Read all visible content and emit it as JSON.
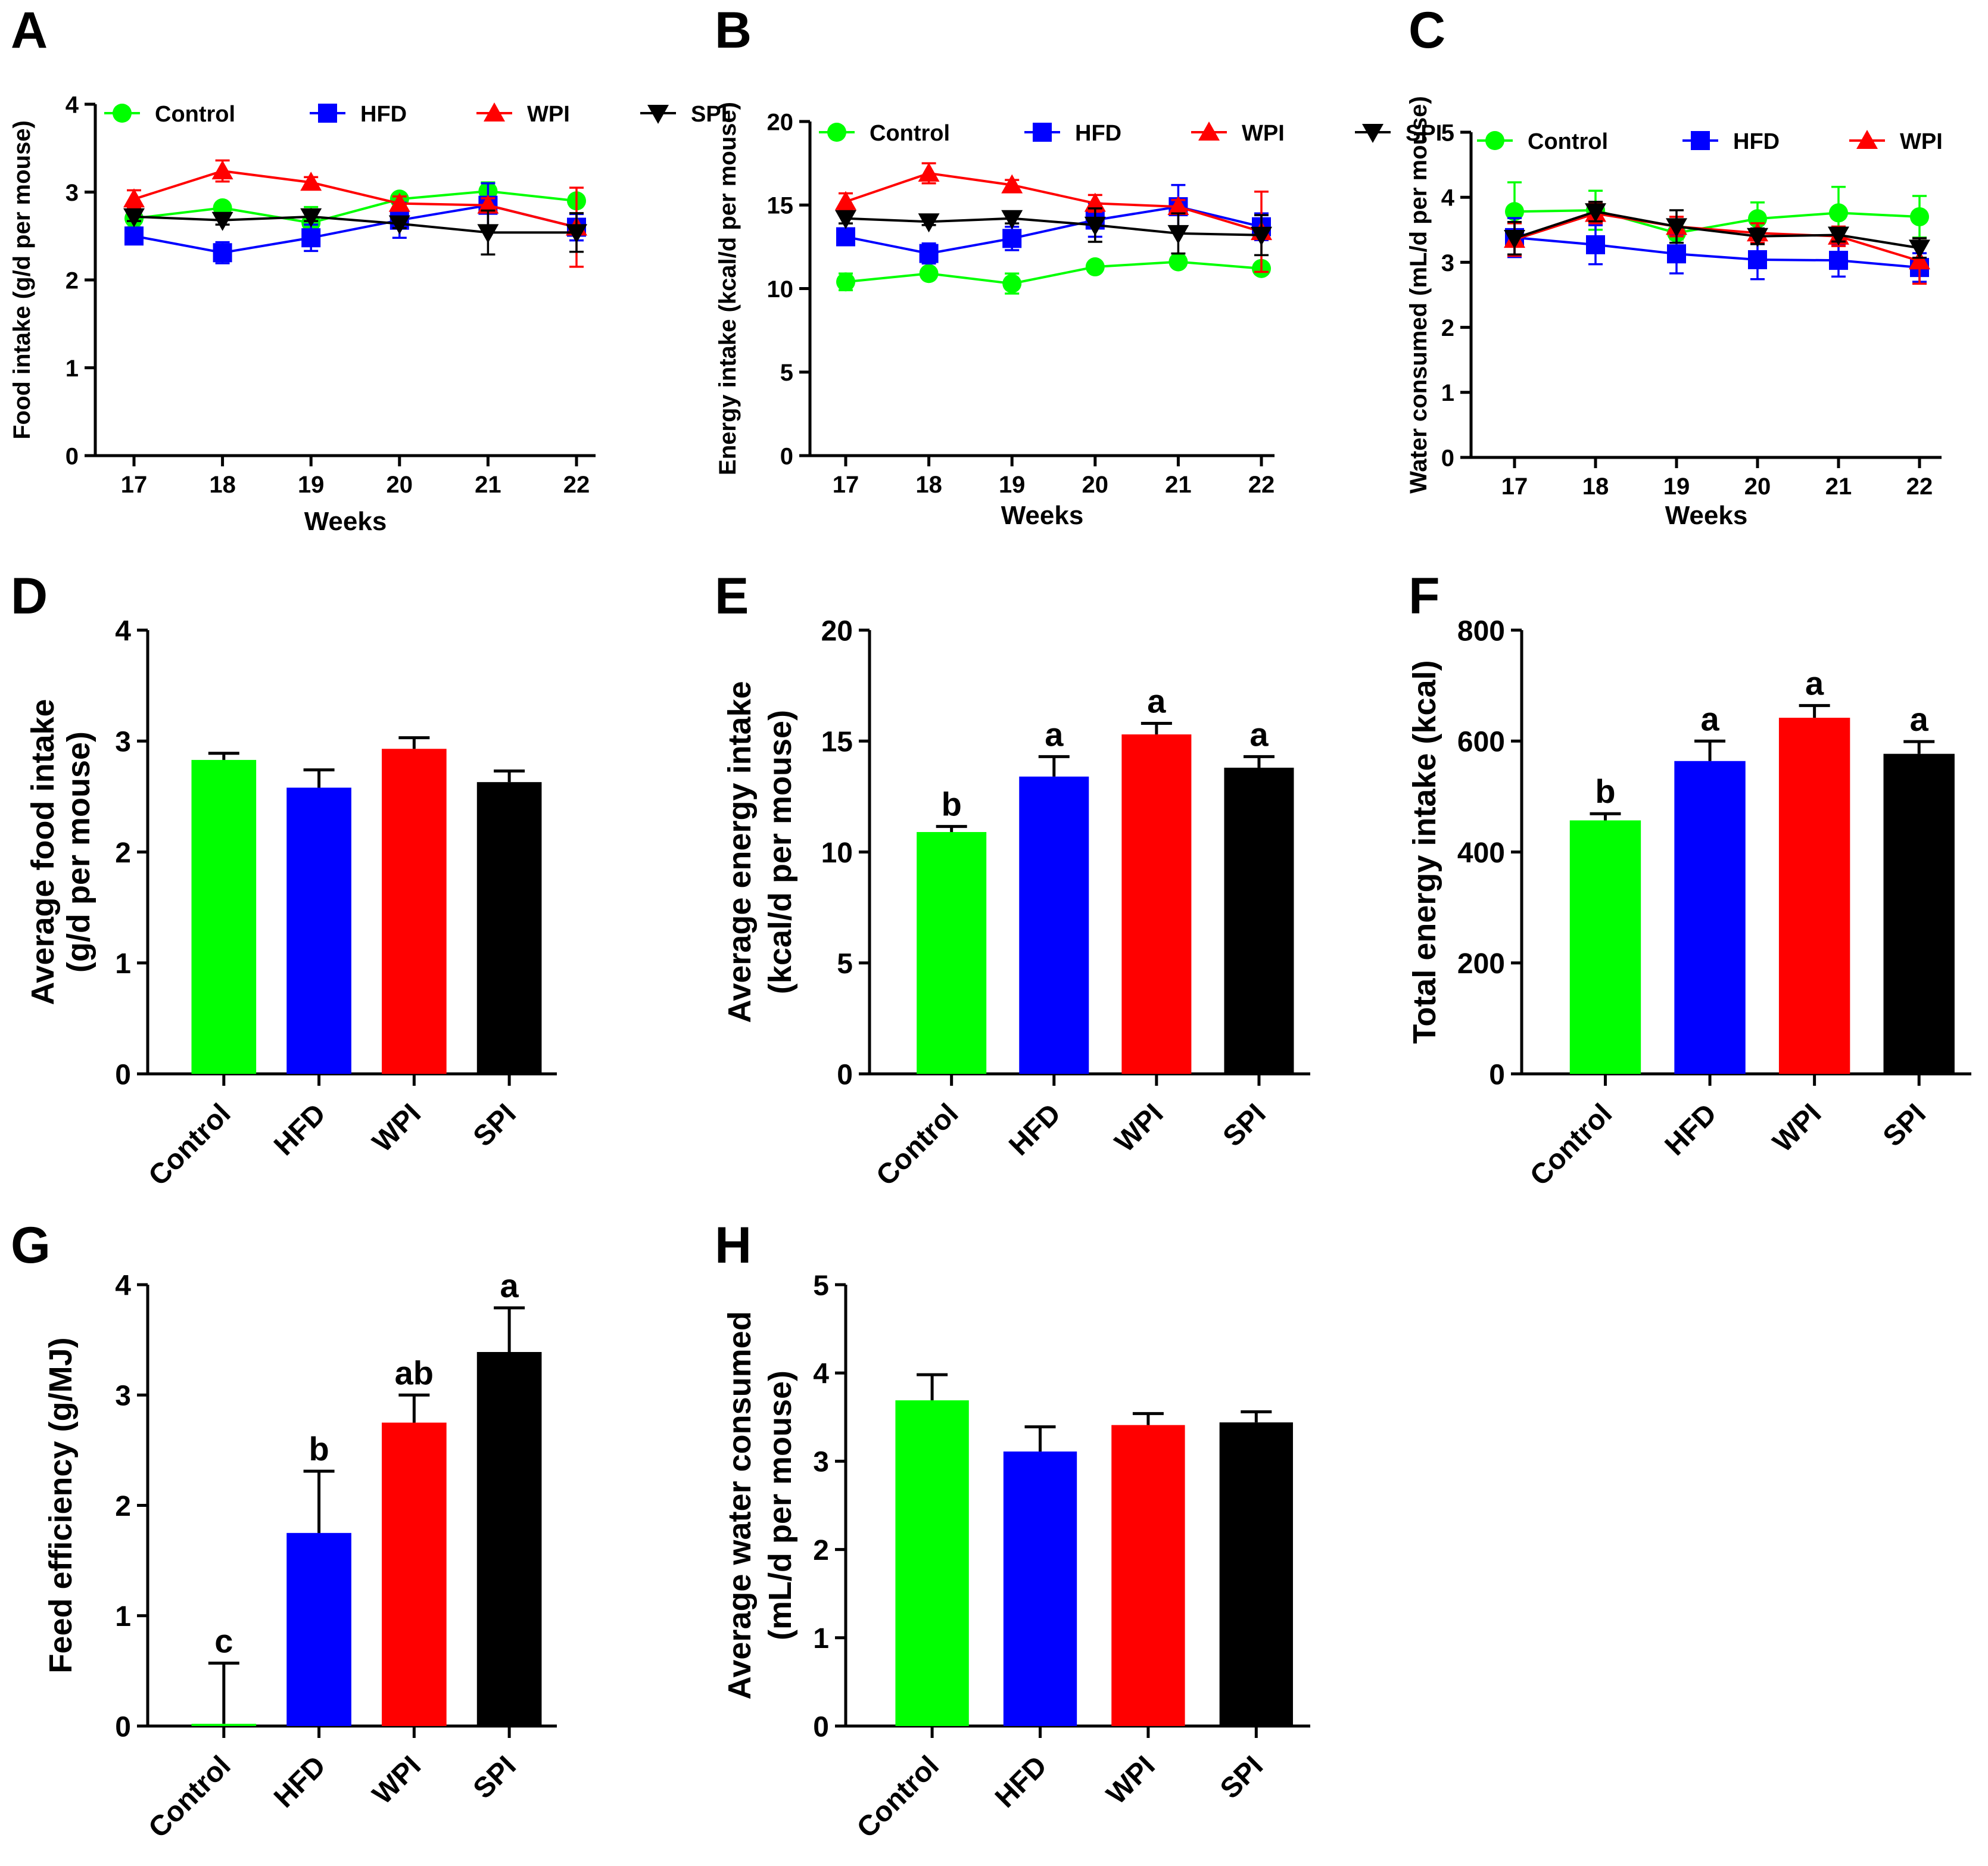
{
  "colors": {
    "Control": "#00ff00",
    "HFD": "#0000ff",
    "WPI": "#ff0000",
    "SPI": "#000000"
  },
  "legend_labels": [
    "Control",
    "HFD",
    "WPI",
    "SPI"
  ],
  "chart_data": [
    {
      "id": "A",
      "type": "line",
      "letter": "A",
      "ylabel": "Food intake (g/d per mouse)",
      "xlabel": "Weeks",
      "x": [
        17,
        18,
        19,
        20,
        21,
        22
      ],
      "xticks": [
        "17",
        "18",
        "19",
        "20",
        "21",
        "22"
      ],
      "ylim": [
        0,
        4
      ],
      "yticks": [
        0,
        1,
        2,
        3,
        4
      ],
      "series": [
        {
          "name": "Control",
          "marker": "circle",
          "values": [
            2.7,
            2.82,
            2.65,
            2.92,
            3.01,
            2.9
          ],
          "errors": [
            0.1,
            0.06,
            0.18,
            0.05,
            0.1,
            0.05
          ]
        },
        {
          "name": "HFD",
          "marker": "square",
          "values": [
            2.5,
            2.31,
            2.48,
            2.68,
            2.85,
            2.6
          ],
          "errors": [
            0.08,
            0.12,
            0.15,
            0.2,
            0.25,
            0.15
          ]
        },
        {
          "name": "WPI",
          "marker": "triangle",
          "values": [
            2.92,
            3.24,
            3.11,
            2.87,
            2.85,
            2.6
          ],
          "errors": [
            0.1,
            0.12,
            0.06,
            0.08,
            0.08,
            0.45
          ]
        },
        {
          "name": "SPI",
          "marker": "triangle-down",
          "values": [
            2.72,
            2.68,
            2.72,
            2.64,
            2.54,
            2.54
          ],
          "errors": [
            0.05,
            0.05,
            0.05,
            0.05,
            0.25,
            0.22
          ]
        }
      ]
    },
    {
      "id": "B",
      "type": "line",
      "letter": "B",
      "ylabel": "Energy intake (kcal/d per mouse)",
      "xlabel": "Weeks",
      "x": [
        17,
        18,
        19,
        20,
        21,
        22
      ],
      "xticks": [
        "17",
        "18",
        "19",
        "20",
        "21",
        "22"
      ],
      "ylim": [
        0,
        20
      ],
      "yticks": [
        0,
        5,
        10,
        15,
        20
      ],
      "series": [
        {
          "name": "Control",
          "marker": "circle",
          "values": [
            10.4,
            10.9,
            10.3,
            11.3,
            11.6,
            11.2
          ],
          "errors": [
            0.5,
            0.3,
            0.6,
            0.2,
            0.3,
            0.2
          ]
        },
        {
          "name": "HFD",
          "marker": "square",
          "values": [
            13.1,
            12.1,
            13.0,
            14.1,
            14.9,
            13.7
          ],
          "errors": [
            0.5,
            0.6,
            0.7,
            1.0,
            1.3,
            0.8
          ]
        },
        {
          "name": "WPI",
          "marker": "triangle",
          "values": [
            15.2,
            16.9,
            16.2,
            15.1,
            14.9,
            13.4
          ],
          "errors": [
            0.5,
            0.6,
            0.3,
            0.5,
            0.4,
            2.4
          ]
        },
        {
          "name": "SPI",
          "marker": "triangle-down",
          "values": [
            14.2,
            14.0,
            14.2,
            13.8,
            13.3,
            13.2
          ],
          "errors": [
            0.3,
            0.2,
            0.3,
            1.0,
            1.2,
            1.2
          ]
        }
      ]
    },
    {
      "id": "C",
      "type": "line",
      "letter": "C",
      "ylabel": "Water consumed (mL/d per mouse)",
      "xlabel": "Weeks",
      "x": [
        17,
        18,
        19,
        20,
        21,
        22
      ],
      "xticks": [
        "17",
        "18",
        "19",
        "20",
        "21",
        "22"
      ],
      "ylim": [
        0,
        5
      ],
      "yticks": [
        0,
        1,
        2,
        3,
        4,
        5
      ],
      "series": [
        {
          "name": "Control",
          "marker": "circle",
          "values": [
            3.78,
            3.8,
            3.45,
            3.67,
            3.76,
            3.7
          ],
          "errors": [
            0.45,
            0.3,
            0.1,
            0.25,
            0.4,
            0.32
          ]
        },
        {
          "name": "HFD",
          "marker": "square",
          "values": [
            3.38,
            3.27,
            3.13,
            3.04,
            3.03,
            2.92
          ],
          "errors": [
            0.3,
            0.3,
            0.3,
            0.3,
            0.25,
            0.22
          ]
        },
        {
          "name": "WPI",
          "marker": "triangle",
          "values": [
            3.35,
            3.75,
            3.55,
            3.45,
            3.4,
            3.02
          ],
          "errors": [
            0.25,
            0.15,
            0.15,
            0.15,
            0.15,
            0.35
          ]
        },
        {
          "name": "SPI",
          "marker": "triangle-down",
          "values": [
            3.37,
            3.78,
            3.55,
            3.4,
            3.42,
            3.22
          ],
          "errors": [
            0.25,
            0.15,
            0.25,
            0.12,
            0.1,
            0.15
          ]
        }
      ]
    },
    {
      "id": "D",
      "type": "bar",
      "letter": "D",
      "ylabel": [
        "Average food intake",
        "(g/d per mouse)"
      ],
      "categories": [
        "Control",
        "HFD",
        "WPI",
        "SPI"
      ],
      "values": [
        2.83,
        2.58,
        2.93,
        2.63
      ],
      "errors": [
        0.06,
        0.16,
        0.1,
        0.1
      ],
      "sig": [],
      "ylim": [
        0,
        4
      ],
      "yticks": [
        0,
        1,
        2,
        3,
        4
      ]
    },
    {
      "id": "E",
      "type": "bar",
      "letter": "E",
      "ylabel": [
        "Average energy intake",
        "(kcal/d per mouse)"
      ],
      "categories": [
        "Control",
        "HFD",
        "WPI",
        "SPI"
      ],
      "values": [
        10.9,
        13.4,
        15.3,
        13.8
      ],
      "errors": [
        0.25,
        0.9,
        0.5,
        0.5
      ],
      "sig": [
        "b",
        "a",
        "a",
        "a"
      ],
      "ylim": [
        0,
        20
      ],
      "yticks": [
        0,
        5,
        10,
        15,
        20
      ]
    },
    {
      "id": "F",
      "type": "bar",
      "letter": "F",
      "ylabel": [
        "Total energy intake (kcal)"
      ],
      "categories": [
        "Control",
        "HFD",
        "WPI",
        "SPI"
      ],
      "values": [
        457,
        564,
        642,
        577
      ],
      "errors": [
        12,
        36,
        22,
        22
      ],
      "sig": [
        "b",
        "a",
        "a",
        "a"
      ],
      "ylim": [
        0,
        800
      ],
      "yticks": [
        0,
        200,
        400,
        600,
        800
      ]
    },
    {
      "id": "G",
      "type": "bar",
      "letter": "G",
      "ylabel": [
        "Feed efficiency (g/MJ)"
      ],
      "categories": [
        "Control",
        "HFD",
        "WPI",
        "SPI"
      ],
      "values": [
        0.02,
        1.75,
        2.75,
        3.39
      ],
      "errors": [
        0.55,
        0.56,
        0.25,
        0.4
      ],
      "sig": [
        "c",
        "b",
        "ab",
        "a"
      ],
      "ylim": [
        0,
        4
      ],
      "yticks": [
        0,
        1,
        2,
        3,
        4
      ]
    },
    {
      "id": "H",
      "type": "bar",
      "letter": "H",
      "ylabel": [
        "Average water consumed",
        "(mL/d per mouse)"
      ],
      "categories": [
        "Control",
        "HFD",
        "WPI",
        "SPI"
      ],
      "values": [
        3.69,
        3.11,
        3.41,
        3.44
      ],
      "errors": [
        0.29,
        0.28,
        0.13,
        0.12
      ],
      "sig": [],
      "ylim": [
        0,
        5
      ],
      "yticks": [
        0,
        1,
        2,
        3,
        4,
        5
      ]
    }
  ]
}
